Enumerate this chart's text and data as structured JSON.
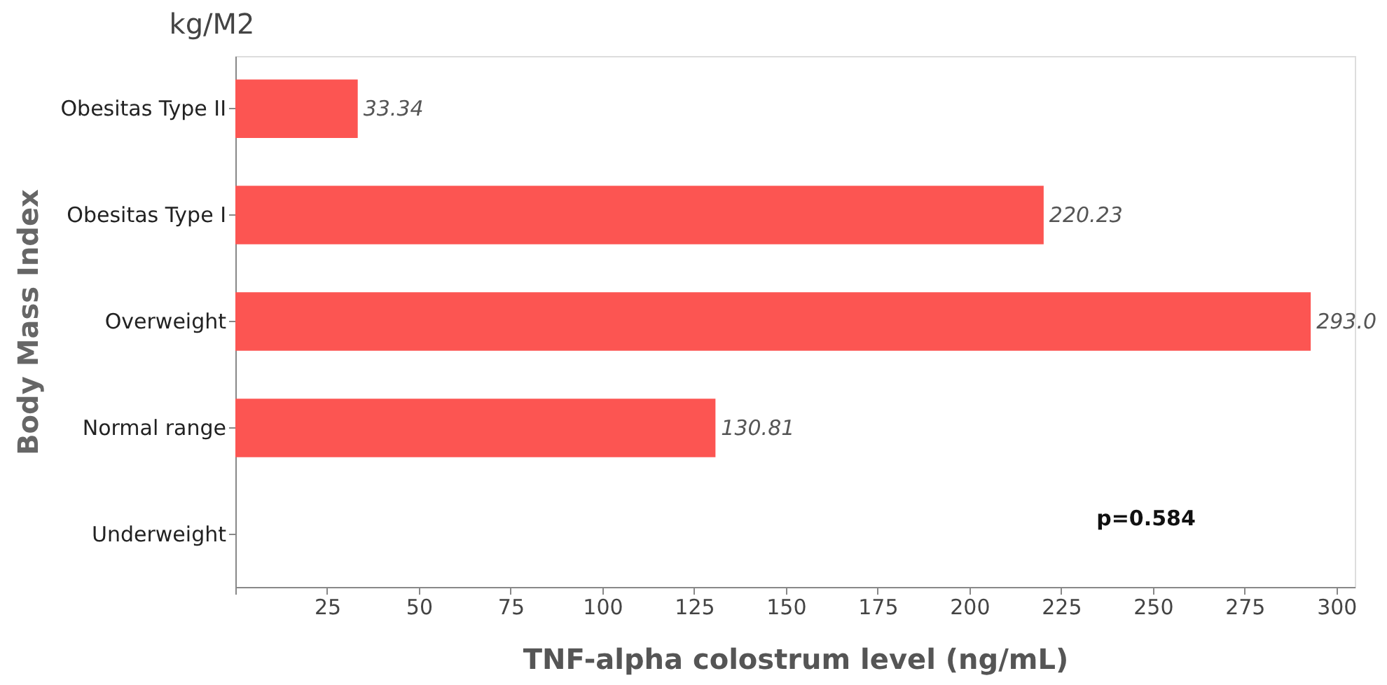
{
  "chart_data": {
    "type": "bar",
    "orientation": "horizontal",
    "title": "kg/M2",
    "xlabel": "TNF-alpha colostrum level (ng/mL)",
    "ylabel": "Body Mass Index",
    "categories": [
      "Obesitas Type II",
      "Obesitas Type I",
      "Overweight",
      "Normal range",
      "Underweight"
    ],
    "values": [
      33.34,
      220.23,
      293.0,
      130.81,
      null
    ],
    "value_labels": [
      "33.34",
      "220.23",
      "293.0",
      "130.81",
      null
    ],
    "color": "#fc5552",
    "xlim": [
      0,
      305
    ],
    "xticks": [
      {
        "value": 0,
        "label": null
      },
      25,
      50,
      75,
      100,
      125,
      150,
      175,
      200,
      225,
      250,
      275,
      300
    ],
    "grid": false,
    "annotations": [
      "p=0.584"
    ]
  }
}
